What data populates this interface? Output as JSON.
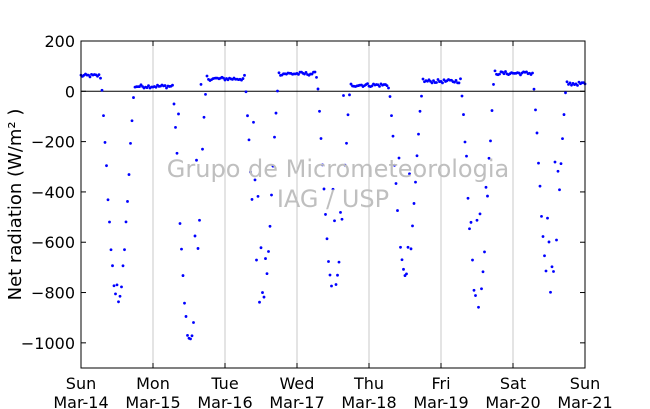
{
  "chart_data": {
    "type": "scatter",
    "ylabel": "Net radiation (W/m² )",
    "ylim": [
      -1100,
      200
    ],
    "yticks": [
      200,
      0,
      -200,
      -400,
      -600,
      -800,
      -1000
    ],
    "ytick_labels": [
      "200",
      "0",
      "−200",
      "−400",
      "−600",
      "−800",
      "−1000"
    ],
    "xlim": [
      0,
      7
    ],
    "xticks": [
      0,
      1,
      2,
      3,
      4,
      5,
      6,
      7
    ],
    "xtick_labels": [
      {
        "day": "Sun",
        "date": "Mar-14"
      },
      {
        "day": "Mon",
        "date": "Mar-15"
      },
      {
        "day": "Tue",
        "date": "Mar-16"
      },
      {
        "day": "Wed",
        "date": "Mar-17"
      },
      {
        "day": "Thu",
        "date": "Mar-18"
      },
      {
        "day": "Fri",
        "date": "Mar-19"
      },
      {
        "day": "Sat",
        "date": "Mar-20"
      },
      {
        "day": "Sun",
        "date": "Mar-21"
      }
    ],
    "grid": "vertical",
    "zero_line": true,
    "series_color": "#0000ff",
    "watermark": [
      "Grupo de Micrometeorologia",
      "IAG / USP"
    ],
    "daily_minimum_approx": [
      {
        "day": "Mar-14",
        "min": -840
      },
      {
        "day": "Mar-15",
        "min": -990
      },
      {
        "day": "Mar-16",
        "min": -860
      },
      {
        "day": "Mar-17",
        "min": -800
      },
      {
        "day": "Mar-18",
        "min": -735
      },
      {
        "day": "Mar-19",
        "min": -850
      },
      {
        "day": "Mar-20",
        "min": -795
      }
    ],
    "night_level_approx": [
      {
        "night": "Mar-14/15",
        "value": 20
      },
      {
        "night": "Mar-15/16",
        "value": 50
      },
      {
        "night": "Mar-16/17",
        "value": 70
      },
      {
        "night": "Mar-17/18",
        "value": 25
      },
      {
        "night": "Mar-18/19",
        "value": 40
      },
      {
        "night": "Mar-19/20",
        "value": 72
      },
      {
        "night": "Mar-20/21",
        "value": 30
      }
    ]
  }
}
